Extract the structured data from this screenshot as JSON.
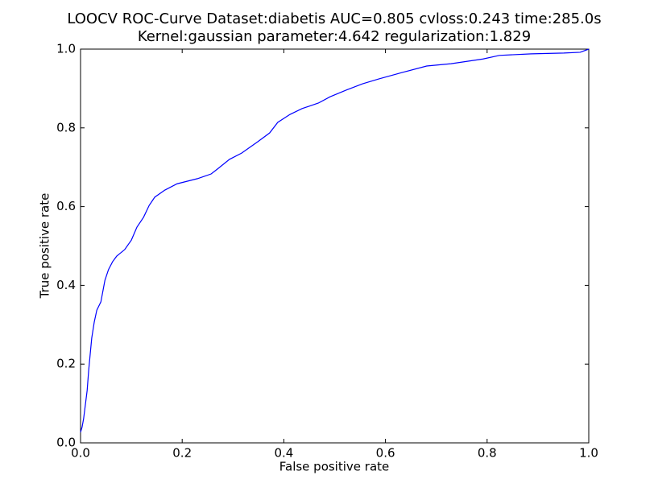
{
  "chart_data": {
    "type": "line",
    "title": "LOOCV ROC-Curve Dataset:diabetis AUC=0.805 cvloss:0.243 time:285.0s",
    "subtitle": "Kernel:gaussian parameter:4.642 regularization:1.829",
    "x_label": "False positive rate",
    "y_label": "True positive rate",
    "color": "#0000ff",
    "x": [
      0,
      0.003,
      0.006,
      0.01,
      0.013,
      0.016,
      0.019,
      0.022,
      0.027,
      0.032,
      0.04,
      0.048,
      0.055,
      0.063,
      0.071,
      0.087,
      0.1,
      0.111,
      0.124,
      0.135,
      0.146,
      0.166,
      0.19,
      0.23,
      0.257,
      0.269,
      0.293,
      0.317,
      0.349,
      0.372,
      0.388,
      0.412,
      0.436,
      0.468,
      0.491,
      0.523,
      0.555,
      0.586,
      0.634,
      0.681,
      0.729,
      0.792,
      0.824,
      0.887,
      0.951,
      0.983,
      1
    ],
    "values": [
      0.027,
      0.04,
      0.061,
      0.102,
      0.133,
      0.184,
      0.225,
      0.266,
      0.307,
      0.337,
      0.358,
      0.413,
      0.44,
      0.46,
      0.474,
      0.491,
      0.515,
      0.548,
      0.573,
      0.603,
      0.624,
      0.642,
      0.658,
      0.671,
      0.683,
      0.695,
      0.72,
      0.736,
      0.765,
      0.787,
      0.814,
      0.834,
      0.849,
      0.863,
      0.879,
      0.896,
      0.912,
      0.924,
      0.941,
      0.957,
      0.963,
      0.975,
      0.984,
      0.988,
      0.99,
      0.992,
      1
    ],
    "xlim": [
      0,
      1
    ],
    "ylim": [
      0,
      1
    ],
    "xticks": [
      {
        "value": 0,
        "label": "0.0"
      },
      {
        "value": 0.2,
        "label": "0.2"
      },
      {
        "value": 0.4,
        "label": "0.4"
      },
      {
        "value": 0.6,
        "label": "0.6"
      },
      {
        "value": 0.8,
        "label": "0.8"
      },
      {
        "value": 1,
        "label": "1.0"
      }
    ],
    "yticks": [
      {
        "value": 0,
        "label": "0.0"
      },
      {
        "value": 0.2,
        "label": "0.2"
      },
      {
        "value": 0.4,
        "label": "0.4"
      },
      {
        "value": 0.6,
        "label": "0.6"
      },
      {
        "value": 0.8,
        "label": "0.8"
      },
      {
        "value": 1,
        "label": "1.0"
      }
    ]
  }
}
